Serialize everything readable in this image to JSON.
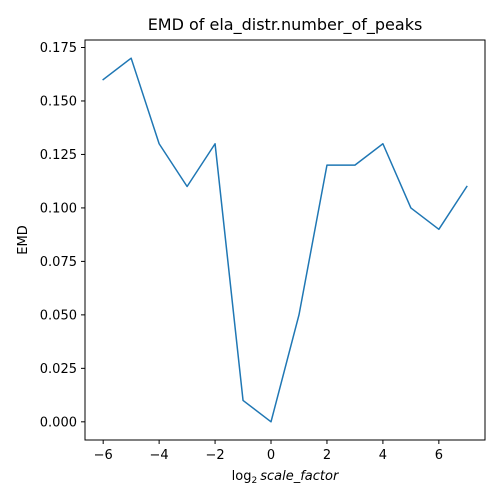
{
  "chart_data": {
    "type": "line",
    "title": "EMD of ela_distr.number_of_peaks",
    "xlabel": {
      "prefix": "log",
      "subscript": "2",
      "variable": "scale_factor"
    },
    "ylabel": "EMD",
    "x": [
      -6,
      -5,
      -4,
      -3,
      -2,
      -1,
      0,
      1,
      2,
      3,
      4,
      5,
      6,
      7
    ],
    "series": [
      {
        "values": [
          0.16,
          0.17,
          0.13,
          0.11,
          0.13,
          0.01,
          0.0,
          0.05,
          0.12,
          0.12,
          0.13,
          0.1,
          0.09,
          0.11
        ],
        "color": "#1f77b4"
      }
    ],
    "xlim": [
      -6.65,
      7.65
    ],
    "ylim": [
      -0.0085,
      0.1785
    ],
    "xticks": [
      -6,
      -4,
      -2,
      0,
      2,
      4,
      6
    ],
    "xtick_labels": [
      "−6",
      "−4",
      "−2",
      "0",
      "2",
      "4",
      "6"
    ],
    "yticks": [
      0.0,
      0.025,
      0.05,
      0.075,
      0.1,
      0.125,
      0.15,
      0.175
    ],
    "ytick_labels": [
      "0.000",
      "0.025",
      "0.050",
      "0.075",
      "0.100",
      "0.125",
      "0.150",
      "0.175"
    ],
    "grid": false,
    "legend": "none"
  }
}
